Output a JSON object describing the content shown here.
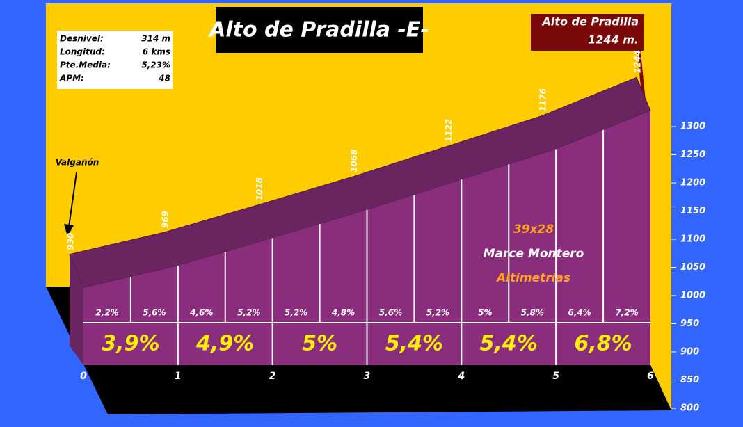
{
  "chart_data": {
    "type": "area",
    "title": "Alto de Pradilla -E-",
    "summit": [
      "Alto de Pradilla",
      "1244 m."
    ],
    "start_label": "Valgañón",
    "stats": [
      {
        "label": "Desnivel:",
        "value": "314 m"
      },
      {
        "label": "Longitud:",
        "value": "6 kms"
      },
      {
        "label": "Pte.Media:",
        "value": "5,23%"
      },
      {
        "label": "APM:",
        "value": "48"
      }
    ],
    "credits": [
      "39x28",
      "Marce Montero",
      "Altimetrías"
    ],
    "x": [
      0,
      1,
      2,
      3,
      4,
      5,
      6
    ],
    "values": [
      930,
      969,
      1018,
      1068,
      1122,
      1176,
      1244
    ],
    "color": "#8a2d7c",
    "top_color": "#6a2560",
    "xlim": [
      0,
      6
    ],
    "xticks": [
      0,
      1,
      2,
      3,
      4,
      5,
      6
    ],
    "ylim": [
      800,
      1300
    ],
    "yticks": [
      800,
      850,
      900,
      950,
      1000,
      1050,
      1100,
      1150,
      1200,
      1250,
      1300
    ],
    "half_km_gradients": {
      "values": [
        2.2,
        5.6,
        4.6,
        5.2,
        5.2,
        4.8,
        5.6,
        5.2,
        5,
        5.8,
        6.4,
        7.2
      ],
      "value_labels": [
        "2,2%",
        "5,6%",
        "4,6%",
        "5,2%",
        "5,2%",
        "4,8%",
        "5,6%",
        "5,2%",
        "5%",
        "5,8%",
        "6,4%",
        "7,2%"
      ]
    },
    "km_gradients": {
      "values": [
        3.9,
        4.9,
        5,
        5.4,
        5.4,
        6.8
      ],
      "value_labels": [
        "3,9%",
        "4,9%",
        "5%",
        "5,4%",
        "5,4%",
        "6,8%"
      ]
    }
  }
}
